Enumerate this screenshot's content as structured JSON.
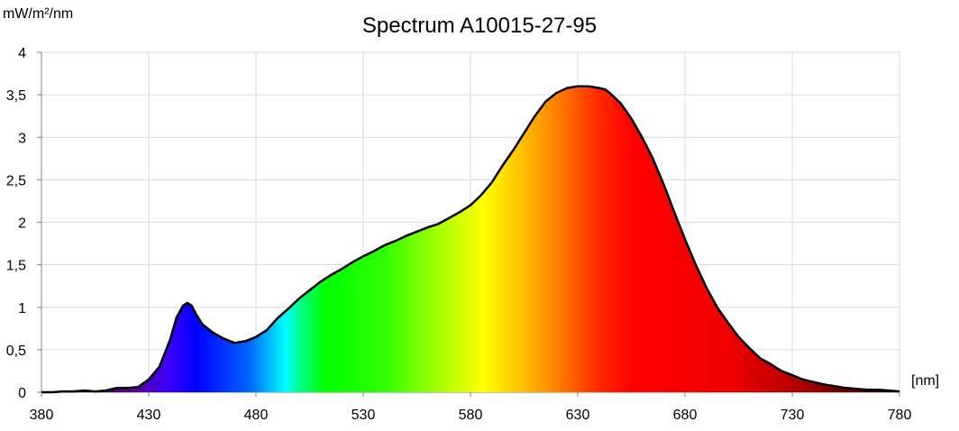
{
  "chart_data": {
    "type": "area",
    "title": "Spectrum A10015-27-95",
    "ylabel": "mW/m²/nm",
    "xlabel": "[nm]",
    "xlim": [
      380,
      780
    ],
    "ylim": [
      0,
      4
    ],
    "x_ticks": [
      "380",
      "430",
      "480",
      "530",
      "580",
      "630",
      "680",
      "730",
      "780"
    ],
    "y_ticks": [
      "0",
      "0,5",
      "1",
      "1,5",
      "2",
      "2,5",
      "3",
      "3,5",
      "4"
    ],
    "grid": true,
    "legend": "none",
    "fill": "visible-spectrum-gradient",
    "series": [
      {
        "x": [
          380,
          385,
          390,
          395,
          400,
          405,
          410,
          415,
          420,
          425,
          430,
          435,
          440,
          443,
          446,
          448,
          450,
          452,
          455,
          460,
          465,
          470,
          475,
          480,
          485,
          490,
          495,
          500,
          505,
          510,
          515,
          520,
          525,
          530,
          535,
          540,
          545,
          550,
          555,
          560,
          565,
          570,
          575,
          580,
          585,
          590,
          595,
          600,
          605,
          610,
          615,
          620,
          625,
          630,
          635,
          640,
          643,
          645,
          650,
          655,
          660,
          665,
          670,
          675,
          680,
          685,
          690,
          695,
          700,
          705,
          710,
          715,
          720,
          725,
          730,
          735,
          740,
          745,
          750,
          755,
          760,
          765,
          770,
          775,
          780
        ],
        "y": [
          0.0,
          0.0,
          0.01,
          0.01,
          0.02,
          0.01,
          0.02,
          0.05,
          0.05,
          0.06,
          0.15,
          0.3,
          0.62,
          0.88,
          1.02,
          1.05,
          1.02,
          0.92,
          0.8,
          0.7,
          0.63,
          0.58,
          0.6,
          0.65,
          0.73,
          0.87,
          0.98,
          1.1,
          1.2,
          1.3,
          1.38,
          1.45,
          1.53,
          1.6,
          1.66,
          1.73,
          1.78,
          1.84,
          1.89,
          1.94,
          1.98,
          2.05,
          2.12,
          2.2,
          2.32,
          2.47,
          2.67,
          2.85,
          3.05,
          3.25,
          3.42,
          3.52,
          3.58,
          3.6,
          3.6,
          3.58,
          3.56,
          3.52,
          3.4,
          3.22,
          3.0,
          2.75,
          2.45,
          2.12,
          1.8,
          1.5,
          1.23,
          1.0,
          0.82,
          0.65,
          0.52,
          0.4,
          0.33,
          0.25,
          0.2,
          0.15,
          0.12,
          0.09,
          0.07,
          0.05,
          0.04,
          0.03,
          0.03,
          0.02,
          0.01
        ]
      }
    ]
  }
}
